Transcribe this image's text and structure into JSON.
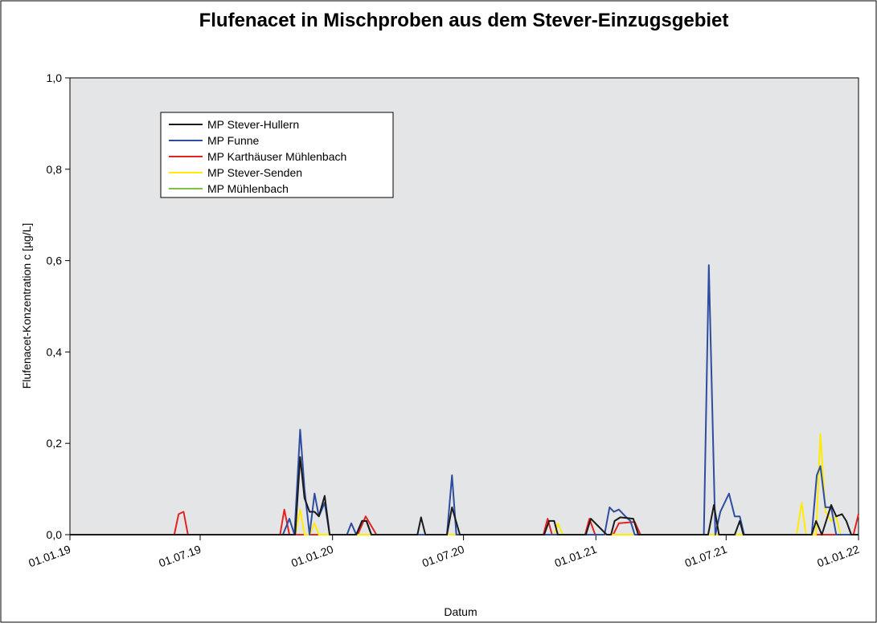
{
  "chart_data": {
    "type": "line",
    "title": "Flufenacet in Mischproben aus dem Stever-Einzugsgebiet",
    "xlabel": "Datum",
    "ylabel": "Flufenacet-Konzentration c   [µg/L]",
    "xlim": [
      "2019-01-01",
      "2022-01-01"
    ],
    "xticks": [
      {
        "value": "2019-01-01",
        "label": "01.01.19"
      },
      {
        "value": "2019-07-01",
        "label": "01.07.19"
      },
      {
        "value": "2020-01-01",
        "label": "01.01.20"
      },
      {
        "value": "2020-07-01",
        "label": "01.07.20"
      },
      {
        "value": "2021-01-01",
        "label": "01.01.21"
      },
      {
        "value": "2021-07-01",
        "label": "01.07.21"
      },
      {
        "value": "2022-01-01",
        "label": "01.01.22"
      }
    ],
    "ylim": [
      0,
      1
    ],
    "yticks": [
      {
        "value": 0,
        "label": "0,0"
      },
      {
        "value": 0.2,
        "label": "0,2"
      },
      {
        "value": 0.4,
        "label": "0,4"
      },
      {
        "value": 0.6,
        "label": "0,6"
      },
      {
        "value": 0.8,
        "label": "0,8"
      },
      {
        "value": 1,
        "label": "1,0"
      }
    ],
    "series": [
      {
        "name": "MP Mühlenbach",
        "color": "#7dc242",
        "x": [
          "2019-01-01",
          "2022-01-01"
        ],
        "values": [
          0,
          0
        ]
      },
      {
        "name": "MP Karthäuser Mühlenbach",
        "color": "#e3231f",
        "x": [
          "2019-01-01",
          "2019-05-26",
          "2019-06-01",
          "2019-06-08",
          "2019-06-14",
          "2019-10-20",
          "2019-10-26",
          "2019-11-02",
          "2020-02-05",
          "2020-02-16",
          "2020-03-02",
          "2020-10-20",
          "2020-10-26",
          "2020-11-01",
          "2020-12-17",
          "2020-12-23",
          "2020-12-31",
          "2021-01-25",
          "2021-02-02",
          "2021-02-24",
          "2021-03-04",
          "2021-12-25",
          "2022-01-01"
        ],
        "values": [
          0,
          0,
          0.045,
          0.05,
          0,
          0,
          0.055,
          0,
          0,
          0.04,
          0,
          0,
          0.035,
          0,
          0,
          0.035,
          0,
          0,
          0.025,
          0.028,
          0,
          0,
          0.045
        ]
      },
      {
        "name": "MP Stever-Senden",
        "color": "#ffec00",
        "x": [
          "2019-01-01",
          "2019-11-10",
          "2019-11-17",
          "2019-11-23",
          "2019-11-30",
          "2019-12-07",
          "2019-12-13",
          "2020-11-04",
          "2020-11-09",
          "2020-11-16",
          "2021-10-07",
          "2021-10-14",
          "2021-10-20",
          "2021-11-03",
          "2021-11-09",
          "2021-11-16",
          "2021-11-24",
          "2021-12-01",
          "2021-12-07",
          "2022-01-01"
        ],
        "values": [
          0,
          0,
          0.055,
          0,
          0,
          0.025,
          0,
          0,
          0.025,
          0,
          0,
          0.07,
          0,
          0,
          0.22,
          0.05,
          0.03,
          0.04,
          0,
          0
        ]
      },
      {
        "name": "MP Funne",
        "color": "#2e4da0",
        "x": [
          "2019-01-01",
          "2019-10-24",
          "2019-11-02",
          "2019-11-09",
          "2019-11-17",
          "2019-11-23",
          "2019-11-30",
          "2019-12-07",
          "2019-12-13",
          "2019-12-21",
          "2019-12-28",
          "2020-01-21",
          "2020-01-27",
          "2020-02-03",
          "2020-02-11",
          "2020-02-17",
          "2020-02-24",
          "2020-06-08",
          "2020-06-15",
          "2020-06-21",
          "2021-01-13",
          "2021-01-20",
          "2021-01-26",
          "2021-02-02",
          "2021-02-11",
          "2021-02-18",
          "2021-02-24",
          "2021-05-31",
          "2021-06-07",
          "2021-06-16",
          "2021-06-23",
          "2021-07-05",
          "2021-07-13",
          "2021-07-20",
          "2021-07-26",
          "2021-10-28",
          "2021-11-04",
          "2021-11-09",
          "2021-11-16",
          "2021-11-24",
          "2021-12-01",
          "2022-01-01"
        ],
        "values": [
          0,
          0,
          0.035,
          0,
          0.23,
          0.1,
          0,
          0.09,
          0.04,
          0.07,
          0,
          0,
          0.025,
          0,
          0.03,
          0.03,
          0,
          0,
          0.13,
          0,
          0,
          0.06,
          0.05,
          0.055,
          0.04,
          0.03,
          0,
          0,
          0.59,
          0,
          0.05,
          0.09,
          0.04,
          0.04,
          0,
          0,
          0.13,
          0.15,
          0.06,
          0.06,
          0,
          0
        ]
      },
      {
        "name": "MP Stever-Hullern",
        "color": "#1a1a1a",
        "x": [
          "2019-01-01",
          "2019-11-10",
          "2019-11-17",
          "2019-11-23",
          "2019-11-30",
          "2019-12-07",
          "2019-12-13",
          "2019-12-21",
          "2019-12-28",
          "2020-02-03",
          "2020-02-11",
          "2020-02-17",
          "2020-02-24",
          "2020-04-28",
          "2020-05-03",
          "2020-05-09",
          "2020-06-08",
          "2020-06-15",
          "2020-06-26",
          "2020-10-21",
          "2020-10-28",
          "2020-11-04",
          "2020-11-09",
          "2020-12-18",
          "2020-12-25",
          "2021-01-16",
          "2021-01-22",
          "2021-01-27",
          "2021-02-04",
          "2021-02-22",
          "2021-03-01",
          "2021-06-06",
          "2021-06-14",
          "2021-06-21",
          "2021-07-13",
          "2021-07-20",
          "2021-07-25",
          "2021-10-28",
          "2021-11-03",
          "2021-11-11",
          "2021-11-24",
          "2021-12-01",
          "2021-12-09",
          "2021-12-15",
          "2021-12-22",
          "2022-01-01"
        ],
        "values": [
          0,
          0,
          0.17,
          0.08,
          0.05,
          0.05,
          0.04,
          0.085,
          0,
          0,
          0.03,
          0.03,
          0,
          0,
          0.038,
          0,
          0,
          0.06,
          0,
          0,
          0.03,
          0.03,
          0,
          0,
          0.035,
          0,
          0,
          0.03,
          0.038,
          0.035,
          0,
          0,
          0.065,
          0,
          0,
          0.03,
          0,
          0,
          0.03,
          0,
          0.065,
          0.04,
          0.045,
          0.03,
          0,
          0
        ]
      }
    ],
    "legend_order": [
      4,
      3,
      1,
      2,
      0
    ],
    "legend": "upper left"
  }
}
